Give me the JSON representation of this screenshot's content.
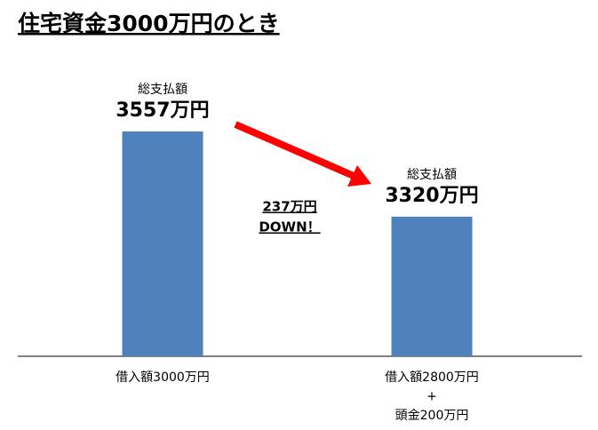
{
  "chart_data": {
    "type": "bar",
    "title": "住宅資金3000万円のとき",
    "categories": [
      [
        "借入額3000万円"
      ],
      [
        "借入額2800万円",
        "+",
        "頭金200万円"
      ]
    ],
    "values": [
      3557,
      3320
    ],
    "value_labels": [
      "3557万円",
      "3320万円"
    ],
    "value_captions": [
      "総支払額",
      "総支払額"
    ],
    "color": "#4f81bd",
    "ylim": [
      2932,
      3700
    ],
    "annotation": [
      "237万円",
      "DOWN！"
    ],
    "annotation_color": "#ff0000"
  }
}
